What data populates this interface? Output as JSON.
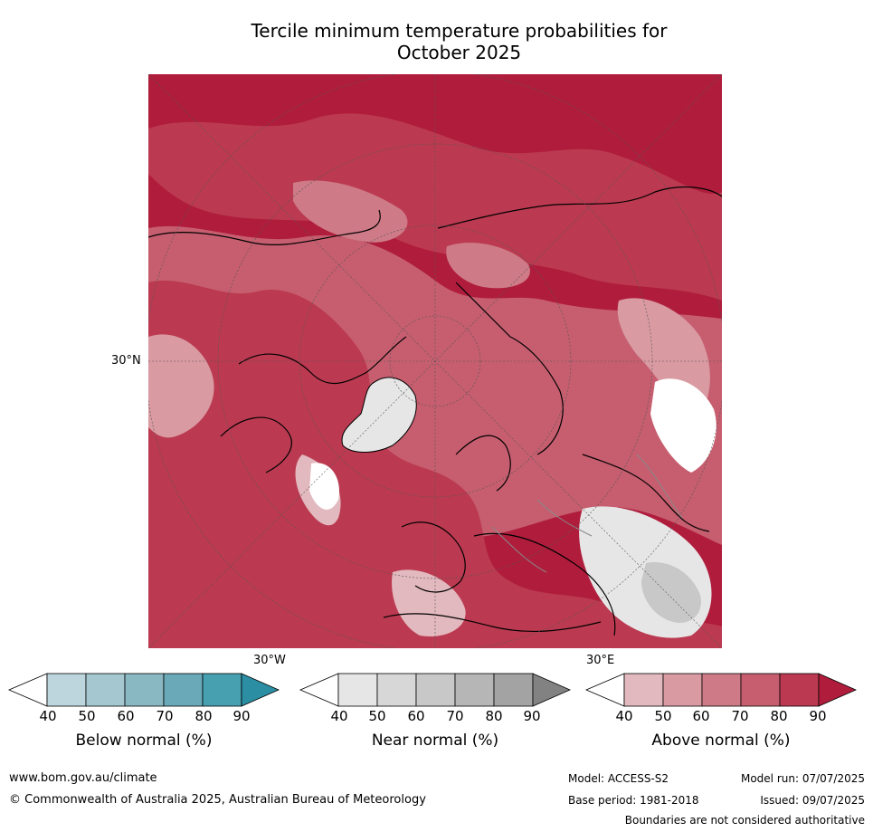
{
  "title": {
    "line1": "Tercile minimum temperature probabilities for",
    "line2": "October 2025"
  },
  "map": {
    "latitude_label": "30°N",
    "longitude_labels": [
      "30°W",
      "30°E"
    ],
    "colors": {
      "land_outline": "#000000",
      "border_outline": "#888888",
      "graticule": "#555555"
    }
  },
  "legends": [
    {
      "label": "Below normal (%)",
      "ticks": [
        "40",
        "50",
        "60",
        "70",
        "80",
        "90"
      ],
      "colors": [
        "#ffffff",
        "#bdd5dc",
        "#a5c7cf",
        "#89b7c2",
        "#6aaab8",
        "#47a0b0",
        "#2b8ea3"
      ]
    },
    {
      "label": "Near normal (%)",
      "ticks": [
        "40",
        "50",
        "60",
        "70",
        "80",
        "90"
      ],
      "colors": [
        "#ffffff",
        "#e6e6e6",
        "#d7d7d7",
        "#c8c8c8",
        "#b6b6b6",
        "#a3a3a3",
        "#828282"
      ]
    },
    {
      "label": "Above normal (%)",
      "ticks": [
        "40",
        "50",
        "60",
        "70",
        "80",
        "90"
      ],
      "colors": [
        "#ffffff",
        "#e2b9be",
        "#d99aa2",
        "#ce7b87",
        "#c65e6f",
        "#bb3a51",
        "#b01d3c"
      ]
    }
  ],
  "footer": {
    "website": "www.bom.gov.au/climate",
    "copyright": "© Commonwealth of Australia 2025, Australian Bureau of Meteorology",
    "model": "Model: ACCESS-S2",
    "model_run": "Model run: 07/07/2025",
    "base_period": "Base period: 1981-2018",
    "issued": "Issued: 09/07/2025",
    "disclaimer": "Boundaries are not considered authoritative"
  }
}
